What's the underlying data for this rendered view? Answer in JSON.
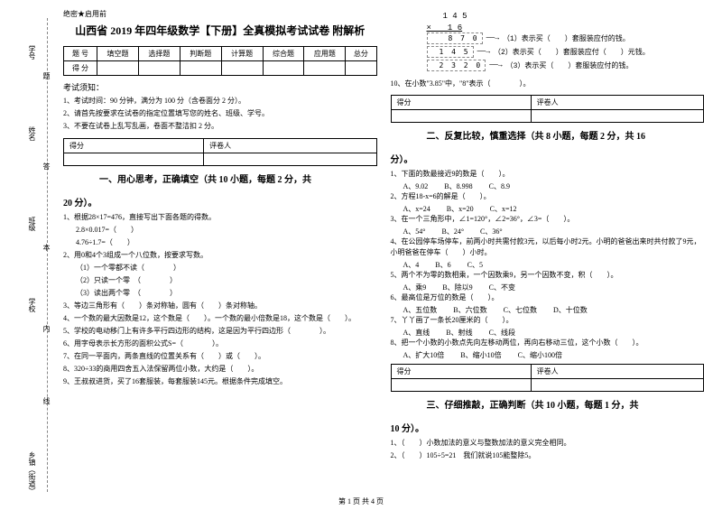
{
  "confidential": "绝密★启用前",
  "title": "山西省 2019 年四年级数学【下册】全真模拟考试试卷 附解析",
  "score_header": [
    "题 号",
    "填空题",
    "选择题",
    "判断题",
    "计算题",
    "综合题",
    "应用题",
    "总分"
  ],
  "score_row_label": "得 分",
  "notice_title": "考试须知：",
  "notices": [
    "1、考试时间：90 分钟，满分为 100 分（含卷面分 2 分）。",
    "2、请首先按要求在试卷的指定位置填写您的姓名、班级、学号。",
    "3、不要在试卷上乱写乱画，卷面不整洁扣 2 分。"
  ],
  "scorebox_labels": [
    "得分",
    "评卷人"
  ],
  "section1": "一、用心思考，正确填空（共 10 小题，每题 2 分，共",
  "section1_cont": "20 分）。",
  "q1_stem": "1、根据28×17=476，直接写出下面各题的得数。",
  "q1_a": "2.8×0.017=（　　）",
  "q1_b": "4.76÷1.7=（　　）",
  "q2_stem": "2、用0和4个3组成一个八位数，按要求写数。",
  "q2_a": "（1）一个零都不读（　　　　）",
  "q2_b": "（2）只读一个零　（　　　　）",
  "q2_c": "（3）读出两个零　（　　　　）",
  "q3": "3、等边三角形有（　　）条对称轴，圆有（　　）条对称轴。",
  "q4": "4、一个数的最大因数是12，这个数是（　　）。一个数的最小倍数是18，这个数是（　　）。",
  "q5": "5、学校的电动移门上有许多平行四边形的结构，这是因为平行四边形（　　　　）。",
  "q6": "6、用字母表示长方形的面积公式S=（　　　　）。",
  "q7": "7、在同一平面内，两条直线的位置关系有（　　）或（　　）。",
  "q8": "8、320÷33的商用四舍五入法保留两位小数，大约是（　　）。",
  "q9": "9、王叔叔进货，买了16套服装，每套服装145元。根据条件完成填空。",
  "mult_lines": {
    "l1": "　　1 4 5",
    "l2": "×　　1 6",
    "hr": "────────",
    "l3": "　　8 7 0",
    "l4": "　1 4 5",
    "hr2": "────────",
    "l5": "　2 3 2 0"
  },
  "arrow1": "（1）表示买（　　）套服装应付的钱。",
  "arrow2": "（2）表示买（　　）套服装应付（　　）元钱。",
  "arrow3": "（3）表示买（　　）套服装应付的钱。",
  "q10": "10、在小数\"3.85\"中，\"8\"表示（　　　　）。",
  "section2": "二、反复比较，慎重选择（共 8 小题，每题 2 分，共 16",
  "section2_cont": "分）。",
  "c1": "1、下面的数最接近9的数是（　　）。",
  "c1_opts": [
    "A、9.02",
    "B、8.998",
    "C、8.9"
  ],
  "c2": "2、方程18-x=6的解是（　　）。",
  "c2_opts": [
    "A、x=24",
    "B、x=20",
    "C、x=12"
  ],
  "c3": "3、在一个三角形中，∠1=120°，∠2=36°，∠3=（　　）。",
  "c3_opts": [
    "A、54°",
    "B、24°",
    "C、36°"
  ],
  "c4": "4、在公园停车场停车，前两小时共需付款3元，以后每小时2元。小明的爸爸出来时共付款了9元，小明爸爸在停车（　　）小时。",
  "c4_opts": [
    "A、4",
    "B、6",
    "C、5"
  ],
  "c5": "5、两个不为零的数相乘，一个因数乘9，另一个因数不变，积（　　）。",
  "c5_opts": [
    "A、乘9",
    "B、除以9",
    "C、不变"
  ],
  "c6": "6、最高位是万位的数是（　　）。",
  "c6_opts": [
    "A、五位数",
    "B、六位数",
    "C、七位数",
    "D、十位数"
  ],
  "c7": "7、丫丫画了一条长20厘米的（　　）。",
  "c7_opts": [
    "A、直线",
    "B、射线",
    "C、线段"
  ],
  "c8": "8、把一个小数的小数点先向左移动两位，再向右移动三位，这个小数（　　）。",
  "c8_opts": [
    "A、扩大10倍",
    "B、缩小10倍",
    "C、缩小100倍"
  ],
  "section3": "三、仔细推敲，正确判断（共 10 小题，每题 1 分，共",
  "section3_cont": "10 分）。",
  "j1": "1、（　　）小数加法的意义与整数加法的意义完全相同。",
  "j2": "2、（　　）105÷5=21　我们就说105能整除5。",
  "footer": "第 1 页 共 4 页",
  "binding_labels": {
    "b1": "学号",
    "b2": "姓名",
    "b3": "班级",
    "b4": "学校",
    "b5": "乡镇（街道）"
  },
  "vmarks": [
    "题",
    "答",
    "本",
    "内",
    "线",
    "封"
  ]
}
